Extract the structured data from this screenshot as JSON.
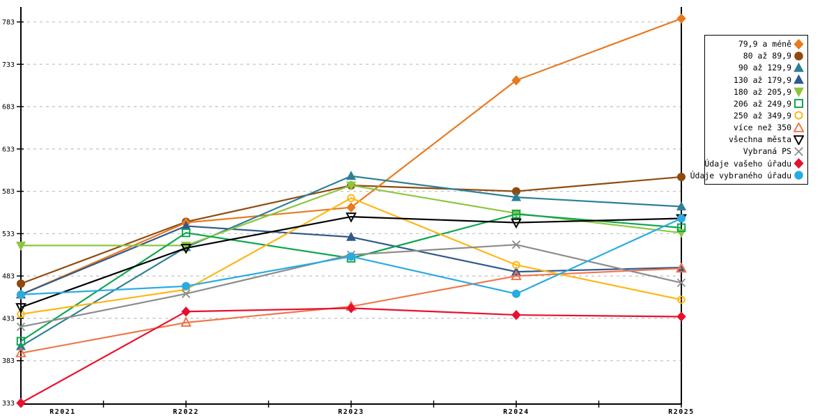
{
  "chart_data": {
    "type": "line",
    "title": "",
    "xlabel": "",
    "ylabel": "",
    "x_categories": [
      "R2021",
      "R2022",
      "R2023",
      "R2024",
      "R2025"
    ],
    "y_ticks": [
      333,
      383,
      433,
      483,
      533,
      583,
      633,
      683,
      733,
      783
    ],
    "ylim": [
      333,
      793
    ],
    "grid": "horizontal-dashed",
    "gridline_color": "#c4c4c4",
    "axis_color": "#000000",
    "legend_position": "right-box",
    "series": [
      {
        "name": "79,9 a méně",
        "color": "#E8791D",
        "marker": "diamond",
        "fill": true,
        "values": [
          461,
          546,
          564,
          714,
          787
        ]
      },
      {
        "name": "80 až 89,9",
        "color": "#8F4A0E",
        "marker": "circle",
        "fill": true,
        "values": [
          474,
          547,
          590,
          583,
          600
        ]
      },
      {
        "name": "90 až 129,9",
        "color": "#2E7F96",
        "marker": "triangle-up",
        "fill": true,
        "values": [
          400,
          517,
          601,
          576,
          565
        ]
      },
      {
        "name": "130 až 179,9",
        "color": "#31598C",
        "marker": "triangle-up",
        "fill": true,
        "values": [
          461,
          542,
          529,
          488,
          493
        ]
      },
      {
        "name": "180 až 205,9",
        "color": "#8CC63F",
        "marker": "triangle-down",
        "fill": true,
        "values": [
          519,
          519,
          590,
          557,
          534
        ]
      },
      {
        "name": "206 až 249,9",
        "color": "#0DA64F",
        "marker": "square",
        "fill": false,
        "values": [
          406,
          534,
          504,
          556,
          540
        ]
      },
      {
        "name": "250 až 349,9",
        "color": "#FFB612",
        "marker": "circle",
        "fill": false,
        "values": [
          438,
          467,
          575,
          496,
          455
        ]
      },
      {
        "name": "více než 350",
        "color": "#F0764B",
        "marker": "triangle-up",
        "fill": false,
        "values": [
          392,
          428,
          447,
          483,
          492
        ]
      },
      {
        "name": "všechna města",
        "color": "#000000",
        "marker": "triangle-down",
        "fill": false,
        "values": [
          446,
          516,
          553,
          546,
          551
        ]
      },
      {
        "name": "Vybraná PS",
        "color": "#8C8C8C",
        "marker": "x",
        "fill": false,
        "values": [
          423,
          462,
          508,
          520,
          475
        ]
      },
      {
        "name": "Údaje vašeho úřadu",
        "color": "#E8112D",
        "marker": "diamond",
        "fill": true,
        "values": [
          333,
          441,
          445,
          437,
          435
        ]
      },
      {
        "name": "Údaje vybraného úřadu",
        "color": "#29ABE2",
        "marker": "circle",
        "fill": true,
        "values": [
          461,
          471,
          506,
          462,
          551
        ]
      }
    ],
    "draw_order": [
      1,
      0,
      2,
      3,
      7,
      4,
      5,
      6,
      8,
      9,
      10,
      11
    ]
  }
}
